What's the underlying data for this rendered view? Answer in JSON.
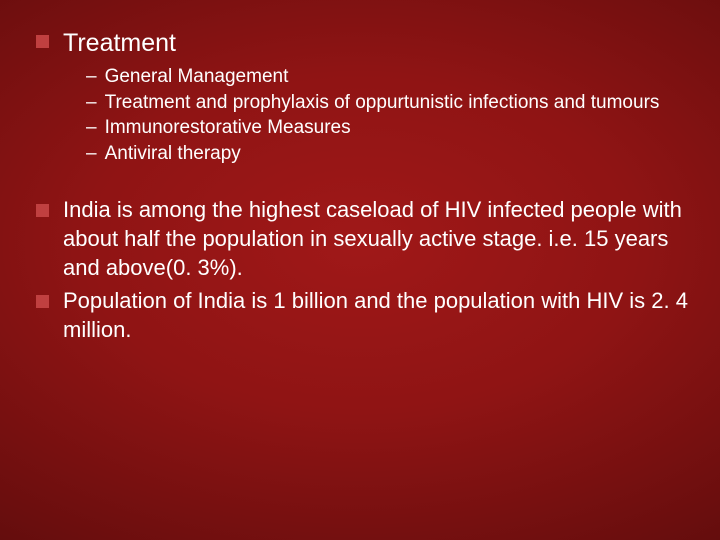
{
  "colors": {
    "background_center": "#a01818",
    "background_edge": "#4a0808",
    "bullet_square": "#c04040",
    "text": "#ffffff"
  },
  "typography": {
    "font_family": "Verdana",
    "heading_fontsize": 25,
    "subitem_fontsize": 19,
    "para_fontsize": 22
  },
  "heading": "Treatment",
  "subitems": [
    "General Management",
    "Treatment and prophylaxis of oppurtunistic infections and tumours",
    "Immunorestorative Measures",
    "Antiviral therapy"
  ],
  "paragraphs": [
    "India is among the highest caseload of HIV infected people with about half the population in sexually active stage. i.e. 15 years and above(0. 3%).",
    "Population of India is 1 billion and the population with HIV is 2. 4 million."
  ]
}
